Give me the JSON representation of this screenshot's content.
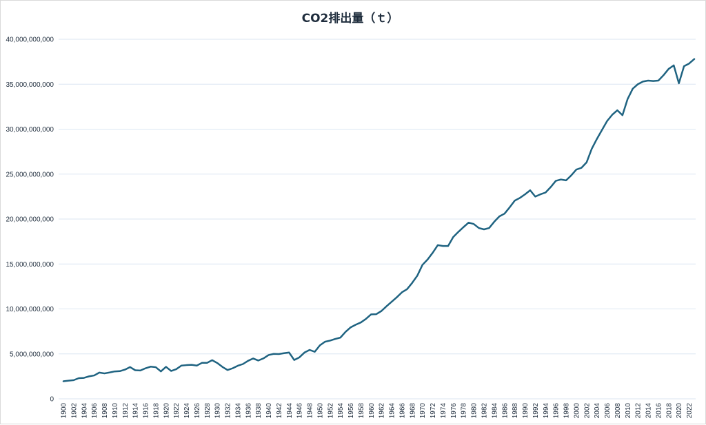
{
  "chart_data": {
    "type": "line",
    "title": "CO2排出量（ｔ）",
    "xlabel": "",
    "ylabel": "",
    "ylim": [
      0,
      40000000000
    ],
    "yticks": [
      0,
      5000000000,
      10000000000,
      15000000000,
      20000000000,
      25000000000,
      30000000000,
      35000000000,
      40000000000
    ],
    "ytick_labels": [
      "0",
      "5,000,000,000",
      "10,000,000,000",
      "15,000,000,000",
      "20,000,000,000",
      "25,000,000,000",
      "30,000,000,000",
      "35,000,000,000",
      "40,000,000,000"
    ],
    "xlim": [
      1900,
      2023
    ],
    "xtick_labels": [
      "1900",
      "1902",
      "1904",
      "1906",
      "1908",
      "1910",
      "1912",
      "1914",
      "1916",
      "1918",
      "1920",
      "1922",
      "1924",
      "1926",
      "1928",
      "1930",
      "1932",
      "1934",
      "1936",
      "1938",
      "1940",
      "1942",
      "1944",
      "1946",
      "1948",
      "1950",
      "1952",
      "1954",
      "1956",
      "1958",
      "1960",
      "1962",
      "1964",
      "1966",
      "1968",
      "1970",
      "1972",
      "1974",
      "1976",
      "1978",
      "1980",
      "1982",
      "1984",
      "1986",
      "1988",
      "1990",
      "1992",
      "1994",
      "1996",
      "1998",
      "2000",
      "2002",
      "2004",
      "2006",
      "2008",
      "2010",
      "2012",
      "2014",
      "2016",
      "2018",
      "2020",
      "2022"
    ],
    "grid": true,
    "legend": "none",
    "colors": {
      "line": "#1f6381",
      "grid": "#dbe6f2",
      "text": "#1f2d3d"
    },
    "x": [
      1900,
      1901,
      1902,
      1903,
      1904,
      1905,
      1906,
      1907,
      1908,
      1909,
      1910,
      1911,
      1912,
      1913,
      1914,
      1915,
      1916,
      1917,
      1918,
      1919,
      1920,
      1921,
      1922,
      1923,
      1924,
      1925,
      1926,
      1927,
      1928,
      1929,
      1930,
      1931,
      1932,
      1933,
      1934,
      1935,
      1936,
      1937,
      1938,
      1939,
      1940,
      1941,
      1942,
      1943,
      1944,
      1945,
      1946,
      1947,
      1948,
      1949,
      1950,
      1951,
      1952,
      1953,
      1954,
      1955,
      1956,
      1957,
      1958,
      1959,
      1960,
      1961,
      1962,
      1963,
      1964,
      1965,
      1966,
      1967,
      1968,
      1969,
      1970,
      1971,
      1972,
      1973,
      1974,
      1975,
      1976,
      1977,
      1978,
      1979,
      1980,
      1981,
      1982,
      1983,
      1984,
      1985,
      1986,
      1987,
      1988,
      1989,
      1990,
      1991,
      1992,
      1993,
      1994,
      1995,
      1996,
      1997,
      1998,
      1999,
      2000,
      2001,
      2002,
      2003,
      2004,
      2005,
      2006,
      2007,
      2008,
      2009,
      2010,
      2011,
      2012,
      2013,
      2014,
      2015,
      2016,
      2017,
      2018,
      2019,
      2020,
      2021,
      2022,
      2023
    ],
    "series": [
      {
        "values": [
          1950000000,
          2020000000,
          2080000000,
          2300000000,
          2330000000,
          2500000000,
          2600000000,
          2920000000,
          2830000000,
          2930000000,
          3050000000,
          3080000000,
          3250000000,
          3530000000,
          3180000000,
          3150000000,
          3400000000,
          3580000000,
          3520000000,
          3050000000,
          3560000000,
          3100000000,
          3300000000,
          3700000000,
          3750000000,
          3780000000,
          3700000000,
          4000000000,
          4000000000,
          4300000000,
          3980000000,
          3550000000,
          3200000000,
          3400000000,
          3680000000,
          3870000000,
          4230000000,
          4490000000,
          4260000000,
          4500000000,
          4870000000,
          5000000000,
          4980000000,
          5080000000,
          5150000000,
          4320000000,
          4610000000,
          5150000000,
          5440000000,
          5230000000,
          5950000000,
          6350000000,
          6480000000,
          6660000000,
          6810000000,
          7450000000,
          7950000000,
          8250000000,
          8500000000,
          8900000000,
          9400000000,
          9420000000,
          9770000000,
          10300000000,
          10800000000,
          11300000000,
          11850000000,
          12200000000,
          12900000000,
          13700000000,
          14900000000,
          15500000000,
          16250000000,
          17100000000,
          17000000000,
          17000000000,
          18000000000,
          18570000000,
          19100000000,
          19600000000,
          19450000000,
          19000000000,
          18850000000,
          19000000000,
          19700000000,
          20300000000,
          20600000000,
          21300000000,
          22050000000,
          22350000000,
          22750000000,
          23200000000,
          22500000000,
          22750000000,
          22950000000,
          23550000000,
          24250000000,
          24400000000,
          24300000000,
          24850000000,
          25500000000,
          25700000000,
          26300000000,
          27800000000,
          28900000000,
          29900000000,
          30900000000,
          31600000000,
          32100000000,
          31550000000,
          33350000000,
          34500000000,
          35000000000,
          35300000000,
          35400000000,
          35350000000,
          35400000000,
          36000000000,
          36700000000,
          37100000000,
          35100000000,
          37000000000,
          37300000000,
          37800000000
        ]
      }
    ]
  }
}
